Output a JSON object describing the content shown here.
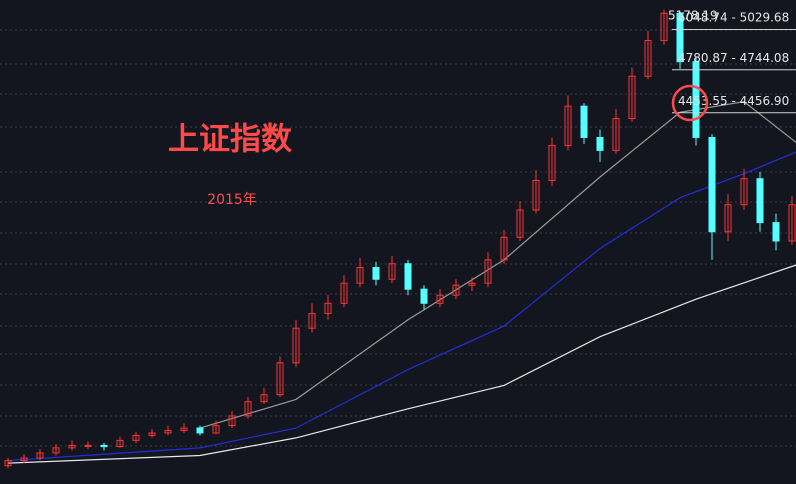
{
  "chart_data": {
    "type": "candlestick",
    "title": "上证指数",
    "subtitle": "2015年",
    "peak_label": "5178.19",
    "levels": [
      {
        "label": "5048.74 - 5029.68",
        "value": 5029.68
      },
      {
        "label": "4780.87 - 4744.08",
        "value": 4744.08
      },
      {
        "label": "4453.55 - 4456.90",
        "value": 4456.9
      }
    ],
    "log_scale": true,
    "ylim": [
      2600,
      5250
    ],
    "xlim": [
      -0.5,
      49.5
    ],
    "up_color": "#ff3232",
    "down_color": "#54ffff",
    "open": [
      2670,
      2690,
      2700,
      2720,
      2740,
      2750,
      2750,
      2745,
      2770,
      2790,
      2800,
      2810,
      2820,
      2800,
      2830,
      2870,
      2930,
      2960,
      3100,
      3260,
      3330,
      3380,
      3480,
      3560,
      3500,
      3580,
      3450,
      3380,
      3420,
      3470,
      3480,
      3600,
      3720,
      3870,
      4040,
      4250,
      4500,
      4300,
      4220,
      4420,
      4700,
      4950,
      5150,
      4800,
      4300,
      3750,
      3900,
      4050,
      3800,
      3700
    ],
    "high": [
      2700,
      2715,
      2735,
      2755,
      2770,
      2765,
      2760,
      2785,
      2805,
      2815,
      2830,
      2840,
      2830,
      2850,
      2890,
      2950,
      2990,
      3130,
      3300,
      3380,
      3420,
      3520,
      3610,
      3590,
      3620,
      3600,
      3470,
      3450,
      3500,
      3510,
      3640,
      3760,
      3920,
      4100,
      4300,
      4570,
      4520,
      4350,
      4480,
      4760,
      5020,
      5178.19,
      5160,
      4830,
      4320,
      3960,
      4110,
      4090,
      3850,
      3950
    ],
    "low": [
      2660,
      2680,
      2690,
      2710,
      2730,
      2735,
      2730,
      2740,
      2760,
      2780,
      2790,
      2800,
      2790,
      2795,
      2820,
      2860,
      2920,
      2950,
      3080,
      3240,
      3300,
      3360,
      3460,
      3470,
      3480,
      3420,
      3350,
      3360,
      3400,
      3440,
      3460,
      3580,
      3700,
      3850,
      4010,
      4220,
      4260,
      4150,
      4200,
      4400,
      4680,
      4920,
      4750,
      4250,
      3600,
      3700,
      3870,
      3750,
      3650,
      3680
    ],
    "close": [
      2690,
      2700,
      2720,
      2740,
      2750,
      2750,
      2745,
      2770,
      2790,
      2800,
      2810,
      2820,
      2800,
      2830,
      2870,
      2930,
      2960,
      3100,
      3260,
      3330,
      3380,
      3480,
      3560,
      3500,
      3580,
      3450,
      3380,
      3420,
      3470,
      3480,
      3600,
      3720,
      3870,
      4040,
      4250,
      4500,
      4300,
      4220,
      4420,
      4700,
      4950,
      5150,
      4800,
      4300,
      3750,
      3900,
      4050,
      3800,
      3700,
      3900
    ],
    "series": [
      {
        "color": "#9a9a9a",
        "x": [
          12,
          18,
          25,
          31,
          37,
          42,
          46,
          49.5
        ],
        "values": [
          2820,
          2940,
          3300,
          3600,
          4060,
          4460,
          4530,
          4250
        ]
      },
      {
        "color": "#1f2fd6",
        "x": [
          0,
          12,
          18,
          25,
          31,
          37,
          42,
          46,
          49.5
        ],
        "values": [
          2690,
          2740,
          2820,
          3070,
          3270,
          3660,
          3940,
          4080,
          4220
        ]
      },
      {
        "color": "#e8e8e8",
        "x": [
          0,
          12,
          18,
          25,
          31,
          37,
          43,
          49.5
        ],
        "values": [
          2680,
          2710,
          2780,
          2900,
          3000,
          3220,
          3400,
          3580
        ]
      }
    ]
  }
}
